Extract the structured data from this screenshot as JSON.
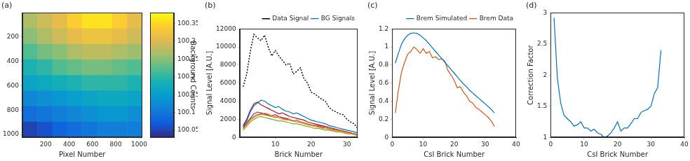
{
  "chart_data": [
    {
      "type": "heatmap",
      "title": "(a)",
      "x_label": "Pixel Number",
      "xlim": [
        0,
        1024
      ],
      "ylim": [
        1024,
        0
      ],
      "xticks": [
        200,
        400,
        600,
        800,
        1000
      ],
      "yticks": [
        200,
        400,
        600,
        800,
        1000
      ],
      "grid": false,
      "x_edges": [
        0,
        128,
        256,
        384,
        512,
        640,
        768,
        896,
        1024
      ],
      "y_edges": [
        0,
        128,
        256,
        384,
        512,
        640,
        768,
        896,
        1024
      ],
      "cells": [
        [
          100.27,
          100.29,
          100.31,
          100.34,
          100.36,
          100.36,
          100.34,
          100.31
        ],
        [
          100.25,
          100.27,
          100.29,
          100.31,
          100.32,
          100.32,
          100.31,
          100.29
        ],
        [
          100.22,
          100.24,
          100.25,
          100.27,
          100.28,
          100.28,
          100.27,
          100.26
        ],
        [
          100.19,
          100.2,
          100.22,
          100.23,
          100.24,
          100.24,
          100.23,
          100.22
        ],
        [
          100.16,
          100.17,
          100.18,
          100.19,
          100.2,
          100.2,
          100.2,
          100.19
        ],
        [
          100.12,
          100.13,
          100.14,
          100.15,
          100.16,
          100.17,
          100.17,
          100.16
        ],
        [
          100.09,
          100.1,
          100.11,
          100.12,
          100.13,
          100.14,
          100.14,
          100.13
        ],
        [
          100.05,
          100.06,
          100.08,
          100.09,
          100.1,
          100.11,
          100.11,
          100.11
        ]
      ],
      "colorbar": {
        "label": "Background Counts",
        "range": [
          100.03,
          100.38
        ],
        "ticks": [
          100.05,
          100.1,
          100.15,
          100.2,
          100.25,
          100.3,
          100.35
        ]
      }
    },
    {
      "type": "line",
      "title": "(b)",
      "x_label": "Brick Number",
      "y_label": "Signal Level [A.U.]",
      "xlim": [
        0,
        33
      ],
      "xticks": [
        10,
        20,
        30
      ],
      "ylim": [
        0,
        12000
      ],
      "yticks": [
        0,
        2000,
        4000,
        6000,
        8000,
        10000,
        12000
      ],
      "grid": false,
      "legend": "upper right",
      "x": [
        1,
        2,
        3,
        4,
        5,
        6,
        7,
        8,
        9,
        10,
        11,
        12,
        13,
        14,
        15,
        16,
        17,
        18,
        19,
        20,
        21,
        22,
        23,
        24,
        25,
        26,
        27,
        28,
        29,
        30,
        31,
        32,
        33
      ],
      "series": [
        {
          "name": "Data Signal",
          "color": "#000000",
          "line_style": "dotted",
          "values": [
            5600,
            7000,
            9500,
            11400,
            11000,
            10700,
            11300,
            10000,
            9000,
            9600,
            9000,
            8500,
            8000,
            8200,
            7000,
            7300,
            7700,
            6500,
            6000,
            5000,
            4800,
            4500,
            4200,
            4000,
            3300,
            3000,
            2800,
            2600,
            2500,
            2000,
            1700,
            1500,
            1000
          ]
        },
        {
          "name": "BG Signals",
          "color": "#0072bd",
          "line_style": "solid",
          "values": [
            1200,
            1800,
            2800,
            3500,
            3800,
            4100,
            4000,
            3700,
            3500,
            3300,
            3400,
            3100,
            2900,
            2800,
            2600,
            2700,
            2500,
            2300,
            2100,
            1900,
            1800,
            1700,
            1600,
            1500,
            1300,
            1200,
            1100,
            1000,
            900,
            800,
            700,
            600,
            500
          ]
        },
        {
          "name": "BG Signals",
          "color": "#d95319",
          "line_style": "solid",
          "values": [
            1000,
            1500,
            2000,
            2300,
            2500,
            2600,
            2500,
            2400,
            2300,
            2200,
            2300,
            2100,
            2000,
            1900,
            1800,
            1900,
            1700,
            1600,
            1500,
            1400,
            1300,
            1300,
            1200,
            1100,
            1000,
            900,
            900,
            800,
            700,
            600,
            500,
            400,
            300
          ]
        },
        {
          "name": "BG Signals",
          "color": "#edb120",
          "line_style": "solid",
          "values": [
            900,
            1400,
            1900,
            2200,
            2400,
            2500,
            2700,
            2600,
            2400,
            2300,
            2100,
            2000,
            1900,
            2000,
            1800,
            1700,
            1600,
            1500,
            1400,
            1300,
            1200,
            1100,
            1000,
            1000,
            900,
            800,
            700,
            700,
            600,
            500,
            400,
            350,
            250
          ]
        },
        {
          "name": "BG Signals",
          "color": "#7e2f8e",
          "line_style": "solid",
          "values": [
            1100,
            1600,
            2100,
            2600,
            2800,
            2700,
            2600,
            2500,
            2400,
            2500,
            2300,
            2200,
            2100,
            2000,
            1800,
            1700,
            1700,
            1600,
            1400,
            1300,
            1300,
            1200,
            1100,
            1000,
            900,
            800,
            800,
            700,
            600,
            500,
            450,
            400,
            300
          ]
        },
        {
          "name": "BG Signals",
          "color": "#77ac30",
          "line_style": "solid",
          "values": [
            800,
            1200,
            1700,
            2000,
            2200,
            2300,
            2200,
            2100,
            2000,
            1900,
            1800,
            1800,
            1700,
            1600,
            1500,
            1500,
            1400,
            1300,
            1200,
            1100,
            1000,
            1000,
            900,
            800,
            800,
            700,
            600,
            600,
            500,
            400,
            400,
            300,
            200
          ]
        },
        {
          "name": "BG Signals",
          "color": "#a2142f",
          "line_style": "solid",
          "values": [
            1300,
            2000,
            3000,
            3700,
            3900,
            3600,
            3400,
            3200,
            3000,
            2800,
            2600,
            2700,
            2500,
            2300,
            2200,
            2100,
            2000,
            1900,
            1700,
            1600,
            1500,
            1400,
            1300,
            1200,
            1100,
            1000,
            900,
            800,
            700,
            600,
            500,
            400,
            300
          ]
        }
      ]
    },
    {
      "type": "line",
      "title": "(c)",
      "x_label": "CsI Brick Number",
      "y_label": "Signal Level [A.U.]",
      "xlim": [
        0,
        40
      ],
      "xticks": [
        0,
        10,
        20,
        30,
        40
      ],
      "ylim": [
        0,
        1.2
      ],
      "yticks": [
        0,
        0.2,
        0.4,
        0.6,
        0.8,
        1,
        1.2
      ],
      "grid": false,
      "legend": "upper right",
      "x": [
        1,
        2,
        3,
        4,
        5,
        6,
        7,
        8,
        9,
        10,
        11,
        12,
        13,
        14,
        15,
        16,
        17,
        18,
        19,
        20,
        21,
        22,
        23,
        24,
        25,
        26,
        27,
        28,
        29,
        30,
        31,
        32,
        33
      ],
      "series": [
        {
          "name": "Brem Simulated",
          "color": "#0072bd",
          "line_style": "solid",
          "values": [
            0.82,
            0.93,
            1.03,
            1.09,
            1.13,
            1.15,
            1.155,
            1.15,
            1.13,
            1.1,
            1.07,
            1.03,
            0.99,
            0.95,
            0.91,
            0.87,
            0.83,
            0.79,
            0.75,
            0.71,
            0.67,
            0.63,
            0.59,
            0.56,
            0.52,
            0.49,
            0.46,
            0.43,
            0.4,
            0.37,
            0.34,
            0.31,
            0.27
          ]
        },
        {
          "name": "Brem Data",
          "color": "#d95319",
          "line_style": "solid",
          "values": [
            0.27,
            0.52,
            0.72,
            0.83,
            0.92,
            0.95,
            1.0,
            0.97,
            0.93,
            0.98,
            0.93,
            0.95,
            0.88,
            0.89,
            0.86,
            0.87,
            0.84,
            0.74,
            0.69,
            0.63,
            0.55,
            0.56,
            0.5,
            0.46,
            0.4,
            0.38,
            0.33,
            0.31,
            0.28,
            0.25,
            0.22,
            0.18,
            0.12
          ]
        }
      ]
    },
    {
      "type": "line",
      "title": "(d)",
      "x_label": "CsI Brick Number",
      "y_label": "Correction Factor",
      "xlim": [
        0,
        40
      ],
      "xticks": [
        0,
        10,
        20,
        30,
        40
      ],
      "ylim": [
        1,
        3
      ],
      "yticks": [
        1,
        1.5,
        2,
        2.5,
        3
      ],
      "grid": false,
      "x": [
        1,
        2,
        3,
        4,
        5,
        6,
        7,
        8,
        9,
        10,
        11,
        12,
        13,
        14,
        15,
        16,
        17,
        18,
        19,
        20,
        21,
        22,
        23,
        24,
        25,
        26,
        27,
        28,
        29,
        30,
        31,
        32,
        33
      ],
      "series": [
        {
          "color": "#0072bd",
          "line_style": "solid",
          "values": [
            2.92,
            1.95,
            1.55,
            1.35,
            1.3,
            1.25,
            1.18,
            1.2,
            1.25,
            1.15,
            1.15,
            1.1,
            1.13,
            1.07,
            1.05,
            1.0,
            1.02,
            1.07,
            1.15,
            1.25,
            1.1,
            1.15,
            1.15,
            1.22,
            1.3,
            1.3,
            1.4,
            1.43,
            1.45,
            1.5,
            1.7,
            1.8,
            2.4
          ]
        }
      ]
    }
  ]
}
